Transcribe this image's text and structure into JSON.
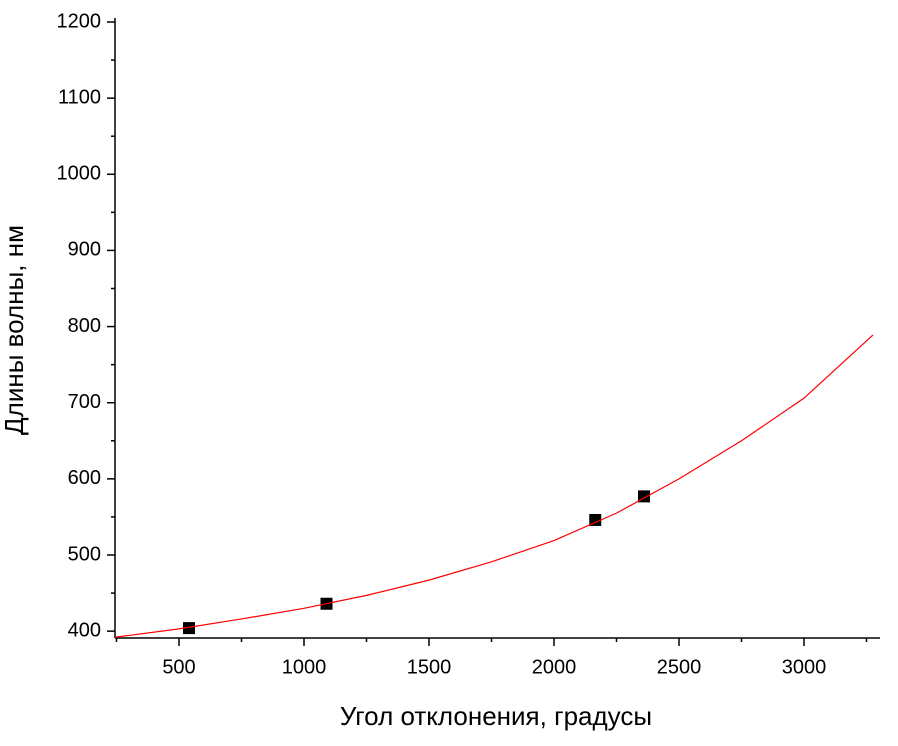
{
  "chart_data": {
    "type": "scatter",
    "x_label": "Угол отклонения, градусы",
    "y_label": "Длины волны, нм",
    "xlim": [
      244,
      3296
    ],
    "ylim": [
      391,
      1200
    ],
    "xticks": [
      500,
      1000,
      1500,
      2000,
      2500,
      3000
    ],
    "yticks": [
      400,
      500,
      600,
      700,
      800,
      900,
      1000,
      1100,
      1200
    ],
    "x_minor_ticks": [
      250,
      750,
      1250,
      1750,
      2250,
      2750,
      3250
    ],
    "y_minor_ticks": [
      450,
      550,
      650,
      750,
      850,
      950,
      1050,
      1150
    ],
    "series": [
      {
        "color": "#000000",
        "x": [
          540,
          1090,
          2165,
          2360
        ],
        "values": [
          404,
          436,
          546,
          577
        ]
      },
      {
        "kind": "line",
        "color": "#ff0000",
        "x": [
          244,
          500,
          750,
          1000,
          1250,
          1500,
          1750,
          2000,
          2250,
          2500,
          2750,
          3000,
          3276
        ],
        "values": [
          392,
          403,
          416,
          430,
          447,
          467,
          491,
          519,
          555,
          600,
          650,
          706,
          789
        ]
      }
    ]
  }
}
